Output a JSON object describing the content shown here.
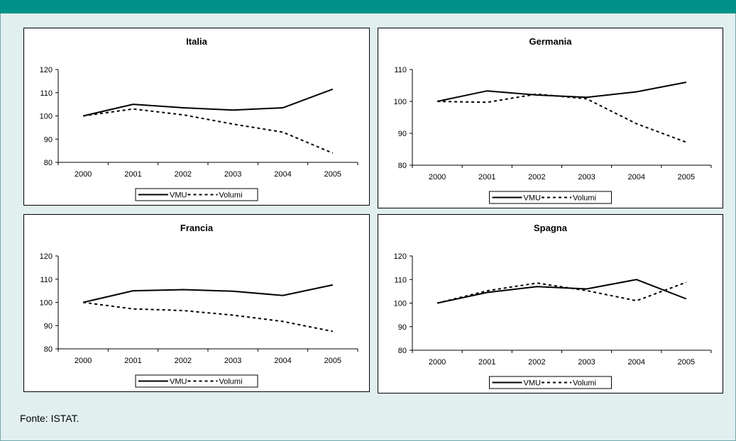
{
  "header_color": "#00928a",
  "source_note": "Fonte: ISTAT.",
  "chart_data": [
    {
      "type": "line",
      "title": "Italia",
      "categories": [
        "2000",
        "2001",
        "2002",
        "2003",
        "2004",
        "2005"
      ],
      "ylim": [
        80,
        120
      ],
      "yticks": [
        80,
        90,
        100,
        110,
        120
      ],
      "grid": false,
      "legend_position": "bottom",
      "series": [
        {
          "name": "VMU",
          "style": "solid",
          "values": [
            100,
            105,
            103.5,
            102.5,
            103.5,
            111.5
          ]
        },
        {
          "name": "Volumi",
          "style": "dashed",
          "values": [
            100,
            103,
            100.5,
            96.5,
            93,
            84
          ]
        }
      ]
    },
    {
      "type": "line",
      "title": "Germania",
      "categories": [
        "2000",
        "2001",
        "2002",
        "2003",
        "2004",
        "2005"
      ],
      "ylim": [
        80,
        110
      ],
      "yticks": [
        80,
        90,
        100,
        110
      ],
      "grid": false,
      "legend_position": "bottom",
      "series": [
        {
          "name": "VMU",
          "style": "solid",
          "values": [
            100,
            103.3,
            102,
            101.3,
            103,
            106
          ]
        },
        {
          "name": "Volumi",
          "style": "dashed",
          "values": [
            100,
            99.7,
            102.3,
            100.8,
            93,
            87.2
          ]
        }
      ]
    },
    {
      "type": "line",
      "title": "Francia",
      "categories": [
        "2000",
        "2001",
        "2002",
        "2003",
        "2004",
        "2005"
      ],
      "ylim": [
        80,
        120
      ],
      "yticks": [
        80,
        90,
        100,
        110,
        120
      ],
      "grid": false,
      "legend_position": "bottom",
      "series": [
        {
          "name": "VMU",
          "style": "solid",
          "values": [
            100,
            105,
            105.5,
            104.8,
            103,
            107.5
          ]
        },
        {
          "name": "Volumi",
          "style": "dashed",
          "values": [
            100,
            97.2,
            96.5,
            94.5,
            91.8,
            87.5
          ]
        }
      ]
    },
    {
      "type": "line",
      "title": "Spagna",
      "categories": [
        "2000",
        "2001",
        "2002",
        "2003",
        "2004",
        "2005"
      ],
      "ylim": [
        80,
        120
      ],
      "yticks": [
        80,
        90,
        100,
        110,
        120
      ],
      "grid": false,
      "legend_position": "bottom",
      "series": [
        {
          "name": "VMU",
          "style": "solid",
          "values": [
            100,
            104.5,
            107,
            106,
            110,
            101.8
          ]
        },
        {
          "name": "Volumi",
          "style": "dashed",
          "values": [
            100,
            105.2,
            108.5,
            105.3,
            101,
            108.8
          ]
        }
      ]
    }
  ]
}
